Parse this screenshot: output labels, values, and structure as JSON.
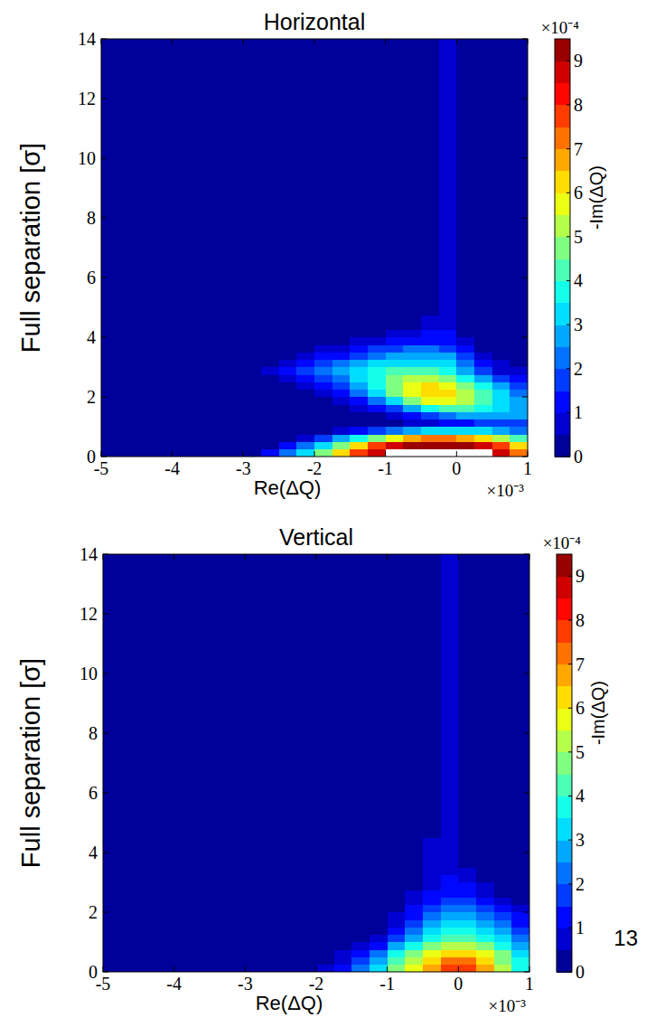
{
  "chart_data": [
    {
      "type": "heatmap",
      "title": "Horizontal",
      "x_label": "Re(ΔQ)",
      "y_label": "Full separation [σ]",
      "x_multiplier": "×10⁻³",
      "colorbar_label": "-Im(ΔQ)",
      "colorbar_multiplier": "×10⁻⁴",
      "xlim": [
        -5,
        1
      ],
      "ylim": [
        0,
        14
      ],
      "xticks": [
        -5,
        -4,
        -3,
        -2,
        -1,
        0,
        1
      ],
      "yticks": [
        0,
        2,
        4,
        6,
        8,
        10,
        12,
        14
      ],
      "colorbar_lim": [
        0,
        9.5
      ],
      "colorbar_ticks": [
        0,
        1,
        2,
        3,
        4,
        5,
        6,
        7,
        8,
        9
      ],
      "x": [
        -2.875,
        -2.625,
        -2.375,
        -2.125,
        -1.875,
        -1.625,
        -1.375,
        -1.125,
        -0.875,
        -0.625,
        -0.375,
        -0.125,
        0.125,
        0.375,
        0.625,
        0.875
      ],
      "y": [
        0.125,
        0.375,
        0.625,
        0.875,
        1.125,
        1.375,
        1.625,
        1.875,
        2.125,
        2.375,
        2.625,
        2.875,
        3.125,
        3.375,
        3.625,
        3.875,
        4.125,
        4.375,
        4.625,
        4.875,
        5.5,
        6.5,
        7.5,
        8.5,
        9.5,
        10.5,
        11.5,
        12.5,
        13.5
      ],
      "cells": [
        [
          0.3,
          1,
          2,
          3,
          4.5,
          6,
          7.5,
          8.5,
          9.6,
          10,
          10,
          10,
          10,
          9.7,
          8.5,
          7
        ],
        [
          0,
          0.3,
          1,
          2,
          3,
          4.5,
          6,
          7.5,
          8.5,
          9.2,
          9.5,
          9.5,
          9.2,
          8.5,
          7.5,
          6
        ],
        [
          0,
          0,
          0,
          0.5,
          1.5,
          2.5,
          3.5,
          4.5,
          5.5,
          6.5,
          7,
          7,
          6.5,
          6,
          5,
          4
        ],
        [
          0,
          0,
          0,
          0,
          0,
          0.5,
          1,
          1.5,
          2,
          2.5,
          3,
          3,
          3,
          3,
          2.5,
          2
        ],
        [
          0,
          0,
          0,
          0,
          0,
          0,
          0,
          0,
          0.3,
          0.5,
          0.8,
          1,
          1.2,
          1.5,
          1.5,
          1.5
        ],
        [
          0,
          0,
          0,
          0,
          0,
          0,
          0,
          0.3,
          0.6,
          1,
          1.5,
          2,
          2.5,
          2.5,
          2.5,
          2.5
        ],
        [
          0,
          0,
          0,
          0,
          0,
          0.2,
          0.5,
          1,
          1.5,
          2.5,
          3.5,
          4,
          4,
          3.5,
          3,
          2.5
        ],
        [
          0,
          0,
          0,
          0,
          0.2,
          0.5,
          1,
          2,
          3,
          4.5,
          5.5,
          5.5,
          5,
          4,
          3,
          2.5
        ],
        [
          0,
          0,
          0,
          0.3,
          0.7,
          1.2,
          2,
          3,
          4.5,
          5.5,
          6.2,
          6,
          5,
          4,
          3,
          2
        ],
        [
          0,
          0,
          0.2,
          0.5,
          1,
          1.7,
          2.5,
          3.5,
          4.5,
          5.5,
          6,
          5.5,
          4.5,
          3.5,
          2.5,
          1.5
        ],
        [
          0,
          0.2,
          0.5,
          1,
          1.7,
          2.3,
          3,
          3.8,
          4.5,
          5,
          5,
          4.5,
          3.5,
          2.5,
          1.5,
          1
        ],
        [
          0,
          0.5,
          1,
          1.5,
          2,
          2.5,
          3,
          3.5,
          4,
          4,
          4,
          3.5,
          2.5,
          1.5,
          0.8,
          0.5
        ],
        [
          0,
          0.3,
          0.8,
          1.2,
          1.5,
          2,
          2.5,
          3,
          3.2,
          3.3,
          3.2,
          3,
          2,
          1,
          0.5,
          0.2
        ],
        [
          0,
          0,
          0.3,
          0.6,
          1,
          1.3,
          1.8,
          2.2,
          2.5,
          2.7,
          2.7,
          2.5,
          1.5,
          0.6,
          0.2,
          0
        ],
        [
          0,
          0,
          0,
          0.2,
          0.5,
          0.8,
          1.2,
          1.5,
          1.8,
          2,
          2,
          1.8,
          1,
          0.3,
          0,
          0
        ],
        [
          0,
          0,
          0,
          0,
          0,
          0.3,
          0.6,
          0.9,
          1.1,
          1.3,
          1.4,
          1.3,
          0.6,
          0.1,
          0,
          0
        ],
        [
          0,
          0,
          0,
          0,
          0,
          0,
          0,
          0.3,
          0.5,
          0.8,
          1,
          1,
          0.4,
          0,
          0,
          0
        ],
        [
          0,
          0,
          0,
          0,
          0,
          0,
          0,
          0,
          0,
          0.3,
          0.7,
          0.8,
          0.3,
          0,
          0,
          0
        ],
        [
          0,
          0,
          0,
          0,
          0,
          0,
          0,
          0,
          0,
          0,
          0.5,
          0.6,
          0.1,
          0,
          0,
          0
        ],
        [
          0,
          0,
          0,
          0,
          0,
          0,
          0,
          0,
          0,
          0,
          0.3,
          0.6,
          0,
          0,
          0,
          0
        ],
        [
          0,
          0,
          0,
          0,
          0,
          0,
          0,
          0,
          0,
          0,
          0,
          0.6,
          0,
          0,
          0,
          0
        ],
        [
          0,
          0,
          0,
          0,
          0,
          0,
          0,
          0,
          0,
          0,
          0,
          0.6,
          0,
          0,
          0,
          0
        ],
        [
          0,
          0,
          0,
          0,
          0,
          0,
          0,
          0,
          0,
          0,
          0,
          0.6,
          0,
          0,
          0,
          0
        ],
        [
          0,
          0,
          0,
          0,
          0,
          0,
          0,
          0,
          0,
          0,
          0,
          0.6,
          0,
          0,
          0,
          0
        ],
        [
          0,
          0,
          0,
          0,
          0,
          0,
          0,
          0,
          0,
          0,
          0,
          0.6,
          0,
          0,
          0,
          0
        ],
        [
          0,
          0,
          0,
          0,
          0,
          0,
          0,
          0,
          0,
          0,
          0,
          0.6,
          0,
          0,
          0,
          0
        ],
        [
          0,
          0,
          0,
          0,
          0,
          0,
          0,
          0,
          0,
          0,
          0,
          0.6,
          0,
          0,
          0,
          0
        ],
        [
          0,
          0,
          0,
          0,
          0,
          0,
          0,
          0,
          0,
          0,
          0,
          0.6,
          0,
          0,
          0,
          0
        ],
        [
          0,
          0,
          0,
          0,
          0,
          0,
          0,
          0,
          0,
          0,
          0,
          0.6,
          0,
          0,
          0,
          0
        ]
      ]
    },
    {
      "type": "heatmap",
      "title": "Vertical",
      "x_label": "Re(ΔQ)",
      "y_label": "Full separation [σ]",
      "x_multiplier": "×10⁻³",
      "colorbar_label": "-Im(ΔQ)",
      "colorbar_multiplier": "×10⁻⁴",
      "xlim": [
        -5,
        1
      ],
      "ylim": [
        0,
        14
      ],
      "xticks": [
        -5,
        -4,
        -3,
        -2,
        -1,
        0,
        1
      ],
      "yticks": [
        0,
        2,
        4,
        6,
        8,
        10,
        12,
        14
      ],
      "colorbar_lim": [
        0,
        9.5
      ],
      "colorbar_ticks": [
        0,
        1,
        2,
        3,
        4,
        5,
        6,
        7,
        8,
        9
      ],
      "x": [
        -2.875,
        -2.625,
        -2.375,
        -2.125,
        -1.875,
        -1.625,
        -1.375,
        -1.125,
        -0.875,
        -0.625,
        -0.375,
        -0.125,
        0.125,
        0.375,
        0.625,
        0.875
      ],
      "y": [
        0.125,
        0.375,
        0.625,
        0.875,
        1.125,
        1.375,
        1.625,
        1.875,
        2.125,
        2.375,
        2.625,
        2.875,
        3.125,
        3.375,
        3.625,
        3.875,
        4.125,
        4.375,
        4.625,
        4.875,
        5.5,
        6.5,
        7.5,
        8.5,
        9.5,
        10.5,
        11.5,
        12.5,
        13.5
      ],
      "cells": [
        [
          0,
          0,
          0,
          0.2,
          0.5,
          1,
          2,
          3,
          4.5,
          5.5,
          6.5,
          7.5,
          7.5,
          6.5,
          5,
          3.5
        ],
        [
          0,
          0,
          0,
          0,
          0.3,
          0.8,
          1.5,
          2.5,
          4,
          5,
          6,
          7,
          7,
          6,
          4.5,
          3.5
        ],
        [
          0,
          0,
          0,
          0,
          0,
          0.5,
          1.2,
          2,
          3.5,
          4.5,
          5.5,
          6,
          6,
          5.5,
          4.5,
          3
        ],
        [
          0,
          0,
          0,
          0,
          0,
          0,
          0.5,
          1.2,
          2.5,
          3.5,
          4.5,
          5,
          5,
          4.5,
          3.5,
          2.5
        ],
        [
          0,
          0,
          0,
          0,
          0,
          0,
          0,
          0.5,
          1.5,
          2.5,
          3.5,
          4,
          4,
          3.5,
          3,
          2
        ],
        [
          0,
          0,
          0,
          0,
          0,
          0,
          0,
          0.3,
          1,
          2,
          3,
          3.5,
          3.5,
          3,
          2.5,
          1.5
        ],
        [
          0,
          0,
          0,
          0,
          0,
          0,
          0,
          0,
          0.7,
          1.5,
          2.5,
          3,
          3,
          2.5,
          2,
          1.2
        ],
        [
          0,
          0,
          0,
          0,
          0,
          0,
          0,
          0,
          0.5,
          1.2,
          2,
          2.5,
          2.5,
          2,
          1.5,
          1
        ],
        [
          0,
          0,
          0,
          0,
          0,
          0,
          0,
          0,
          0,
          1,
          1.7,
          2,
          2,
          1.5,
          1,
          0.7
        ],
        [
          0,
          0,
          0,
          0,
          0,
          0,
          0,
          0,
          0,
          0.7,
          1.3,
          1.7,
          1.6,
          1.1,
          0.7,
          0.4
        ],
        [
          0,
          0,
          0,
          0,
          0,
          0,
          0,
          0,
          0,
          0.5,
          1.1,
          1.4,
          1.3,
          0.8,
          0.4,
          0.2
        ],
        [
          0,
          0,
          0,
          0,
          0,
          0,
          0,
          0,
          0,
          0.4,
          0.9,
          1.2,
          1,
          0.5,
          0.2,
          0
        ],
        [
          0,
          0,
          0,
          0,
          0,
          0,
          0,
          0,
          0,
          0,
          0.8,
          1,
          0.8,
          0.3,
          0,
          0
        ],
        [
          0,
          0,
          0,
          0,
          0,
          0,
          0,
          0,
          0,
          0,
          0.7,
          0.9,
          0.6,
          0,
          0,
          0
        ],
        [
          0,
          0,
          0,
          0,
          0,
          0,
          0,
          0,
          0,
          0,
          0.6,
          0.8,
          0.4,
          0,
          0,
          0
        ],
        [
          0,
          0,
          0,
          0,
          0,
          0,
          0,
          0,
          0,
          0,
          0.6,
          0.7,
          0.2,
          0,
          0,
          0
        ],
        [
          0,
          0,
          0,
          0,
          0,
          0,
          0,
          0,
          0,
          0,
          0.6,
          0.6,
          0,
          0,
          0,
          0
        ],
        [
          0,
          0,
          0,
          0,
          0,
          0,
          0,
          0,
          0,
          0,
          0.6,
          0.6,
          0,
          0,
          0,
          0
        ],
        [
          0,
          0,
          0,
          0,
          0,
          0,
          0,
          0,
          0,
          0,
          0,
          0.6,
          0,
          0,
          0,
          0
        ],
        [
          0,
          0,
          0,
          0,
          0,
          0,
          0,
          0,
          0,
          0,
          0,
          0.6,
          0,
          0,
          0,
          0
        ],
        [
          0,
          0,
          0,
          0,
          0,
          0,
          0,
          0,
          0,
          0,
          0,
          0.6,
          0,
          0,
          0,
          0
        ],
        [
          0,
          0,
          0,
          0,
          0,
          0,
          0,
          0,
          0,
          0,
          0,
          0.6,
          0,
          0,
          0,
          0
        ],
        [
          0,
          0,
          0,
          0,
          0,
          0,
          0,
          0,
          0,
          0,
          0,
          0.6,
          0,
          0,
          0,
          0
        ],
        [
          0,
          0,
          0,
          0,
          0,
          0,
          0,
          0,
          0,
          0,
          0,
          0.6,
          0,
          0,
          0,
          0
        ],
        [
          0,
          0,
          0,
          0,
          0,
          0,
          0,
          0,
          0,
          0,
          0,
          0.6,
          0,
          0,
          0,
          0
        ],
        [
          0,
          0,
          0,
          0,
          0,
          0,
          0,
          0,
          0,
          0,
          0,
          0.6,
          0,
          0,
          0,
          0
        ],
        [
          0,
          0,
          0,
          0,
          0,
          0,
          0,
          0,
          0,
          0,
          0,
          0.6,
          0,
          0,
          0,
          0
        ],
        [
          0,
          0,
          0,
          0,
          0,
          0,
          0,
          0,
          0,
          0,
          0,
          0.6,
          0,
          0,
          0,
          0
        ],
        [
          0,
          0,
          0,
          0,
          0,
          0,
          0,
          0,
          0,
          0,
          0,
          0.6,
          0,
          0,
          0,
          0
        ]
      ]
    }
  ],
  "page_number": "13"
}
